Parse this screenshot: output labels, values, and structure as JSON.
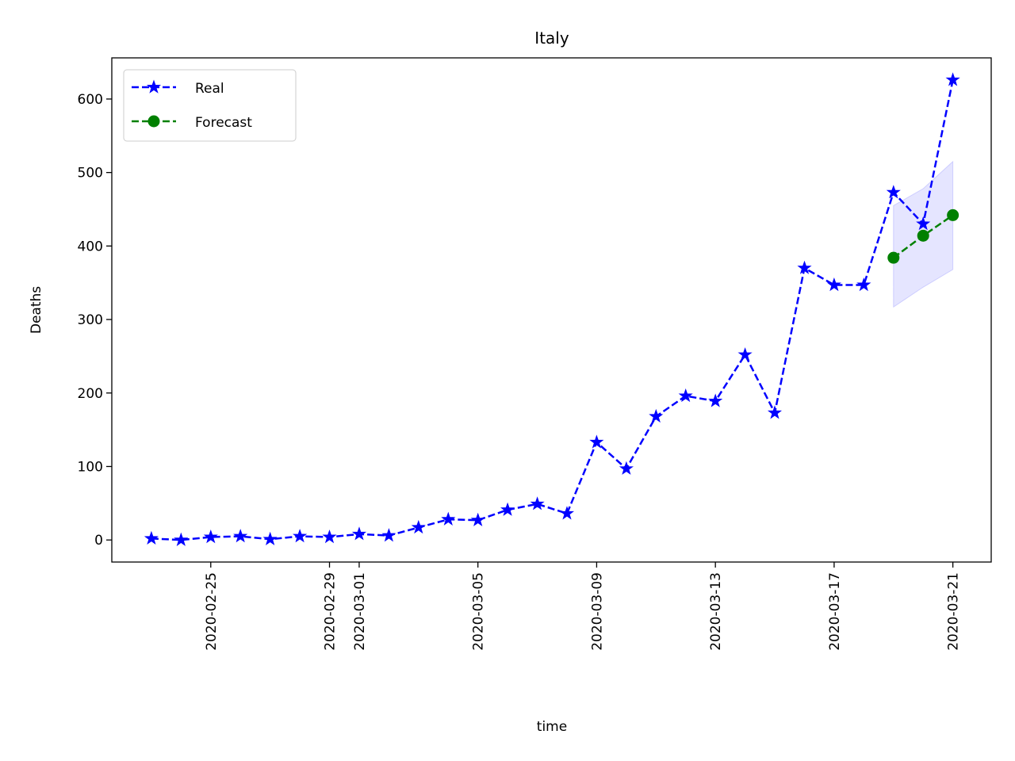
{
  "chart_data": {
    "type": "line",
    "title": "Italy",
    "xlabel": "time",
    "ylabel": "Deaths",
    "series": [
      {
        "name": "Real",
        "color": "#0000ff",
        "marker": "star",
        "linestyle": "dashed",
        "x": [
          "2020-02-23",
          "2020-02-24",
          "2020-02-25",
          "2020-02-26",
          "2020-02-27",
          "2020-02-28",
          "2020-02-29",
          "2020-03-01",
          "2020-03-02",
          "2020-03-03",
          "2020-03-04",
          "2020-03-05",
          "2020-03-06",
          "2020-03-07",
          "2020-03-08",
          "2020-03-09",
          "2020-03-10",
          "2020-03-11",
          "2020-03-12",
          "2020-03-13",
          "2020-03-14",
          "2020-03-15",
          "2020-03-16",
          "2020-03-17",
          "2020-03-18",
          "2020-03-19",
          "2020-03-20",
          "2020-03-21"
        ],
        "values": [
          2,
          0,
          4,
          5,
          1,
          5,
          4,
          8,
          6,
          17,
          28,
          27,
          41,
          49,
          36,
          133,
          97,
          168,
          196,
          189,
          252,
          173,
          370,
          347,
          347,
          473,
          430,
          626
        ]
      },
      {
        "name": "Forecast",
        "color": "#008000",
        "marker": "circle",
        "linestyle": "dashed",
        "x": [
          "2020-03-19",
          "2020-03-20",
          "2020-03-21"
        ],
        "values": [
          384,
          414,
          442
        ],
        "interval": {
          "color": "#0000ff",
          "lower": [
            317,
            344,
            368
          ],
          "upper": [
            455,
            478,
            515
          ]
        }
      }
    ],
    "xlim": [
      "2020-02-21T16:00",
      "2020-03-22T07:00"
    ],
    "xticks": [
      "2020-02-25",
      "2020-02-29",
      "2020-03-01",
      "2020-03-05",
      "2020-03-09",
      "2020-03-13",
      "2020-03-17",
      "2020-03-21"
    ],
    "ylim": [
      -30,
      656
    ],
    "yticks": [
      0,
      100,
      200,
      300,
      400,
      500,
      600
    ],
    "grid": false,
    "legend": "upper left"
  }
}
